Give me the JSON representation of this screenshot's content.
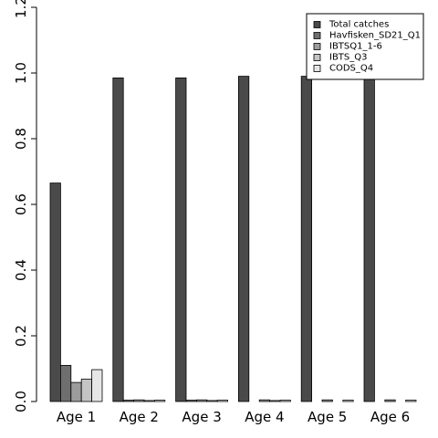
{
  "chart_data": {
    "type": "bar",
    "title": "",
    "xlabel": "",
    "ylabel": "",
    "ylim": [
      0,
      1.2
    ],
    "yticks": [
      0.0,
      0.2,
      0.4,
      0.6,
      0.8,
      1.0,
      1.2
    ],
    "ytick_labels": [
      "0.0",
      "0.2",
      "0.4",
      "0.6",
      "0.8",
      "1.0",
      "1.2"
    ],
    "categories": [
      "Age 1",
      "Age 2",
      "Age 3",
      "Age 4",
      "Age 5",
      "Age 6"
    ],
    "legend_position": "top-right",
    "grid": false,
    "series": [
      {
        "name": "Total catches",
        "color": "#4a4a4a",
        "values": [
          0.665,
          0.985,
          0.985,
          0.99,
          0.99,
          0.99
        ]
      },
      {
        "name": "Havfisken_SD21_Q1",
        "color": "#6f6f6f",
        "values": [
          0.11,
          0.004,
          0.004,
          0.0,
          0.0,
          0.0
        ]
      },
      {
        "name": "IBTSQ1_1-6",
        "color": "#9c9c9c",
        "values": [
          0.058,
          0.005,
          0.005,
          0.005,
          0.005,
          0.005
        ]
      },
      {
        "name": "IBTS_Q3",
        "color": "#c4c4c4",
        "values": [
          0.068,
          0.003,
          0.003,
          0.003,
          0.0,
          0.0
        ]
      },
      {
        "name": "CODS_Q4",
        "color": "#e6e6e6",
        "values": [
          0.097,
          0.004,
          0.004,
          0.004,
          0.004,
          0.004
        ]
      }
    ]
  }
}
